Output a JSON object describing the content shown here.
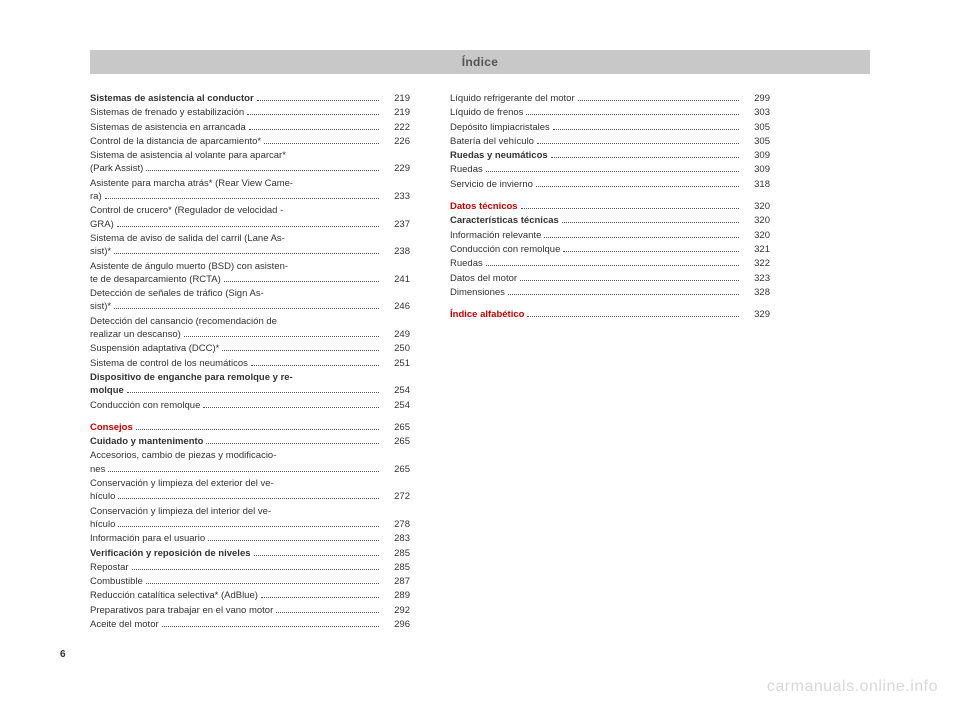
{
  "header": "Índice",
  "pageNumber": "6",
  "watermark": "carmanuals.online.info",
  "col1": [
    {
      "lines": [
        "Sistemas de asistencia al conductor"
      ],
      "page": "219",
      "style": "bold"
    },
    {
      "lines": [
        "Sistemas de frenado y estabilización"
      ],
      "page": "219"
    },
    {
      "lines": [
        "Sistemas de asistencia en arrancada"
      ],
      "page": "222"
    },
    {
      "lines": [
        "Control de la distancia de aparcamiento*"
      ],
      "page": "226"
    },
    {
      "lines": [
        "Sistema de asistencia al volante para aparcar*",
        "(Park Assist)"
      ],
      "page": "229"
    },
    {
      "lines": [
        "Asistente para marcha atrás* (Rear View Came-",
        "ra)"
      ],
      "page": "233"
    },
    {
      "lines": [
        "Control de crucero* (Regulador de velocidad -",
        "GRA)"
      ],
      "page": "237"
    },
    {
      "lines": [
        "Sistema de aviso de salida del carril (Lane As-",
        "sist)*"
      ],
      "page": "238"
    },
    {
      "lines": [
        "Asistente de ángulo muerto (BSD) con asisten-",
        "te de desaparcamiento (RCTA)"
      ],
      "page": "241"
    },
    {
      "lines": [
        "Detección de señales de tráfico (Sign As-",
        "sist)*"
      ],
      "page": "246"
    },
    {
      "lines": [
        "Detección del cansancio (recomendación de",
        "realizar un descanso)"
      ],
      "page": "249"
    },
    {
      "lines": [
        "Suspensión adaptativa (DCC)*"
      ],
      "page": "250"
    },
    {
      "lines": [
        "Sistema de control de los neumáticos"
      ],
      "page": "251"
    },
    {
      "lines": [
        "Dispositivo de enganche para remolque y re-",
        "molque"
      ],
      "page": "254",
      "style": "bold"
    },
    {
      "lines": [
        "Conducción con remolque"
      ],
      "page": "254"
    },
    {
      "spacer": true
    },
    {
      "lines": [
        "Consejos"
      ],
      "page": "265",
      "style": "red"
    },
    {
      "lines": [
        "Cuidado y mantenimento"
      ],
      "page": "265",
      "style": "bold"
    },
    {
      "lines": [
        "Accesorios, cambio de piezas y modificacio-",
        "nes"
      ],
      "page": "265"
    },
    {
      "lines": [
        "Conservación y limpieza del exterior del ve-",
        "hículo"
      ],
      "page": "272"
    },
    {
      "lines": [
        "Conservación y limpieza del interior del ve-",
        "hículo"
      ],
      "page": "278"
    },
    {
      "lines": [
        "Información para el usuario"
      ],
      "page": "283"
    },
    {
      "lines": [
        "Verificación y reposición de niveles"
      ],
      "page": "285",
      "style": "bold"
    },
    {
      "lines": [
        "Repostar"
      ],
      "page": "285"
    },
    {
      "lines": [
        "Combustible"
      ],
      "page": "287"
    },
    {
      "lines": [
        "Reducción catalítica selectiva* (AdBlue)"
      ],
      "page": "289"
    },
    {
      "lines": [
        "Preparativos para trabajar en el vano motor"
      ],
      "page": "292"
    },
    {
      "lines": [
        "Aceite del motor"
      ],
      "page": "296"
    }
  ],
  "col2": [
    {
      "lines": [
        "Líquido refrigerante del motor"
      ],
      "page": "299"
    },
    {
      "lines": [
        "Líquido de frenos"
      ],
      "page": "303"
    },
    {
      "lines": [
        "Depósito limpiacristales"
      ],
      "page": "305"
    },
    {
      "lines": [
        "Batería del vehículo"
      ],
      "page": "305"
    },
    {
      "lines": [
        "Ruedas y neumáticos"
      ],
      "page": "309",
      "style": "bold"
    },
    {
      "lines": [
        "Ruedas"
      ],
      "page": "309"
    },
    {
      "lines": [
        "Servicio de invierno"
      ],
      "page": "318"
    },
    {
      "spacer": true
    },
    {
      "lines": [
        "Datos técnicos"
      ],
      "page": "320",
      "style": "red"
    },
    {
      "lines": [
        "Características técnicas"
      ],
      "page": "320",
      "style": "bold"
    },
    {
      "lines": [
        "Información relevante"
      ],
      "page": "320"
    },
    {
      "lines": [
        "Conducción con remolque"
      ],
      "page": "321"
    },
    {
      "lines": [
        "Ruedas"
      ],
      "page": "322"
    },
    {
      "lines": [
        "Datos del motor"
      ],
      "page": "323"
    },
    {
      "lines": [
        "Dimensiones"
      ],
      "page": "328"
    },
    {
      "spacer": true
    },
    {
      "lines": [
        "Índice alfabético"
      ],
      "page": "329",
      "style": "red"
    }
  ]
}
